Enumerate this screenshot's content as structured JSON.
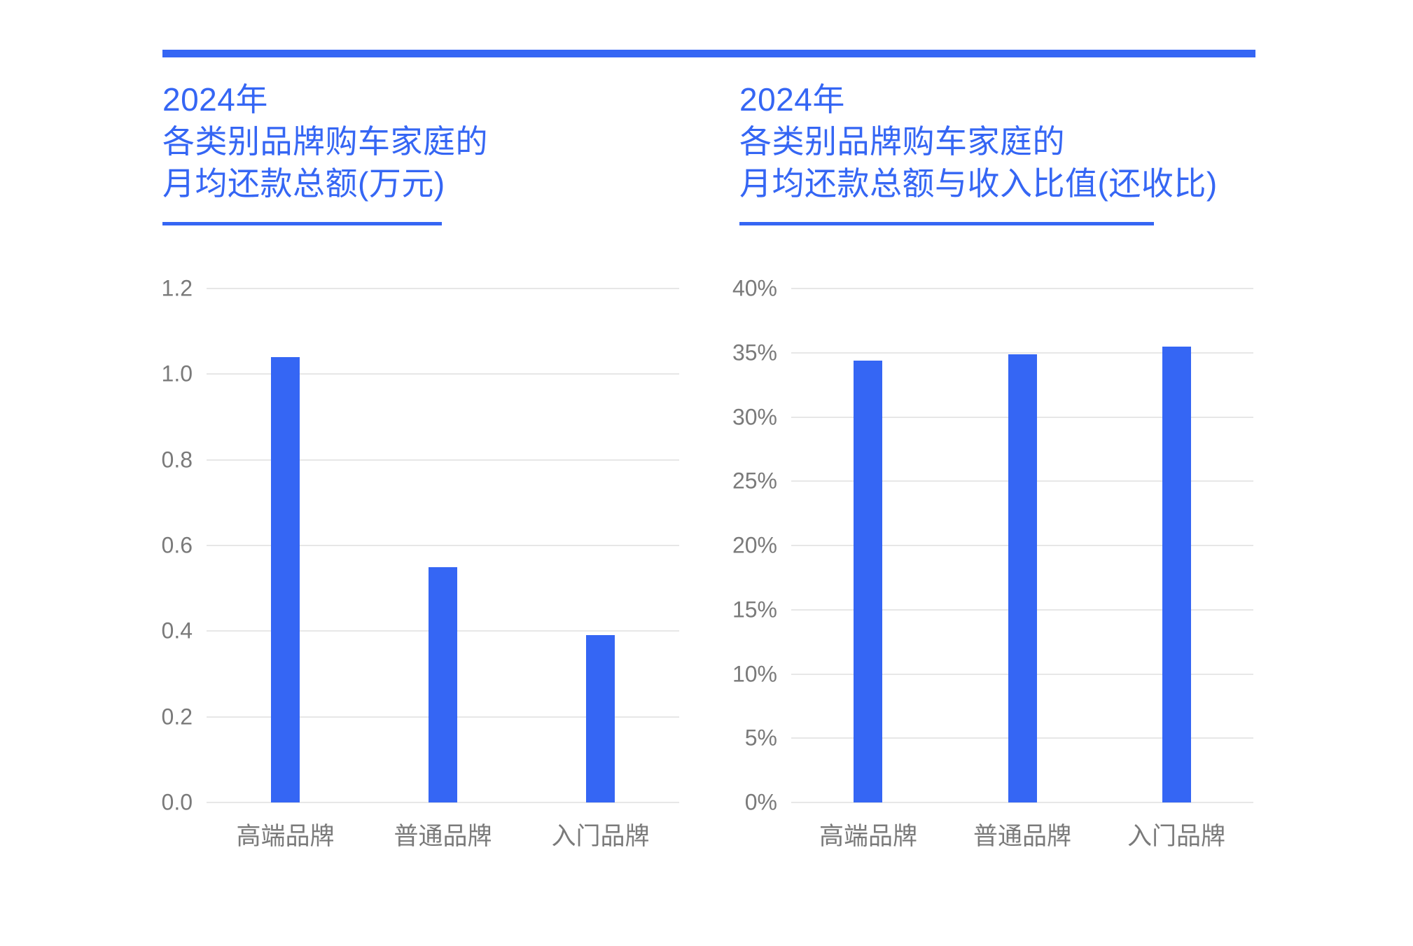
{
  "page": {
    "background": "#ffffff",
    "accent_color": "#3566F4",
    "gridline_color": "#E7E7E7",
    "axis_label_color": "#7A7A7A"
  },
  "top_bar": {
    "color": "#3566F4"
  },
  "chart_data": [
    {
      "type": "bar",
      "title_lines": [
        "2024年",
        "各类别品牌购车家庭的",
        "月均还款总额(万元)"
      ],
      "title": "2024年各类别品牌购车家庭的月均还款总额(万元)",
      "categories": [
        "高端品牌",
        "普通品牌",
        "入门品牌"
      ],
      "values": [
        1.04,
        0.55,
        0.39
      ],
      "xlabel": "",
      "ylabel": "",
      "ylim": [
        0,
        1.2
      ],
      "yticks": [
        0,
        0.2,
        0.4,
        0.6,
        0.8,
        1.0,
        1.2
      ],
      "ytick_labels": [
        "0.0",
        "0.2",
        "0.4",
        "0.6",
        "0.8",
        "1.0",
        "1.2"
      ],
      "grid": true,
      "legend": "none",
      "bar_color": "#3566F4"
    },
    {
      "type": "bar",
      "title_lines": [
        "2024年",
        "各类别品牌购车家庭的",
        "月均还款总额与收入比值(还收比)"
      ],
      "title": "2024年各类别品牌购车家庭的月均还款总额与收入比值(还收比)",
      "categories": [
        "高端品牌",
        "普通品牌",
        "入门品牌"
      ],
      "values": [
        34.4,
        34.9,
        35.5
      ],
      "value_unit": "%",
      "xlabel": "",
      "ylabel": "",
      "ylim": [
        0,
        40
      ],
      "yticks": [
        0,
        5,
        10,
        15,
        20,
        25,
        30,
        35,
        40
      ],
      "ytick_labels": [
        "0%",
        "5%",
        "10%",
        "15%",
        "20%",
        "25%",
        "30%",
        "35%",
        "40%"
      ],
      "grid": true,
      "legend": "none",
      "bar_color": "#3566F4"
    }
  ]
}
